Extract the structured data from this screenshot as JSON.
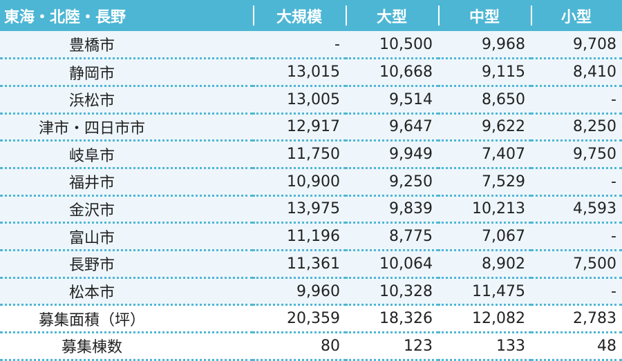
{
  "table": {
    "headers": [
      "東海・北陸・長野",
      "大規模",
      "大型",
      "中型",
      "小型"
    ],
    "rows": [
      {
        "name": "豊橋市",
        "values": [
          "-",
          "10,500",
          "9,968",
          "9,708"
        ]
      },
      {
        "name": "静岡市",
        "values": [
          "13,015",
          "10,668",
          "9,115",
          "8,410"
        ]
      },
      {
        "name": "浜松市",
        "values": [
          "13,005",
          "9,514",
          "8,650",
          "-"
        ]
      },
      {
        "name": "津市・四日市市",
        "values": [
          "12,917",
          "9,647",
          "9,622",
          "8,250"
        ]
      },
      {
        "name": "岐阜市",
        "values": [
          "11,750",
          "9,949",
          "7,407",
          "9,750"
        ]
      },
      {
        "name": "福井市",
        "values": [
          "10,900",
          "9,250",
          "7,529",
          "-"
        ]
      },
      {
        "name": "金沢市",
        "values": [
          "13,975",
          "9,839",
          "10,213",
          "4,593"
        ]
      },
      {
        "name": "富山市",
        "values": [
          "11,196",
          "8,775",
          "7,067",
          "-"
        ]
      },
      {
        "name": "長野市",
        "values": [
          "11,361",
          "10,064",
          "8,902",
          "7,500"
        ]
      },
      {
        "name": "松本市",
        "values": [
          "9,960",
          "10,328",
          "11,475",
          "-"
        ]
      },
      {
        "name": "募集面積（坪）",
        "values": [
          "20,359",
          "18,326",
          "12,082",
          "2,783"
        ]
      },
      {
        "name": "募集棟数",
        "values": [
          "80",
          "123",
          "133",
          "48"
        ]
      }
    ]
  },
  "colors": {
    "header_bg": "#4db6d4",
    "row_bg": "#eef6fb",
    "summary_bg": "#ffffff",
    "divider": "#4db6d4"
  }
}
